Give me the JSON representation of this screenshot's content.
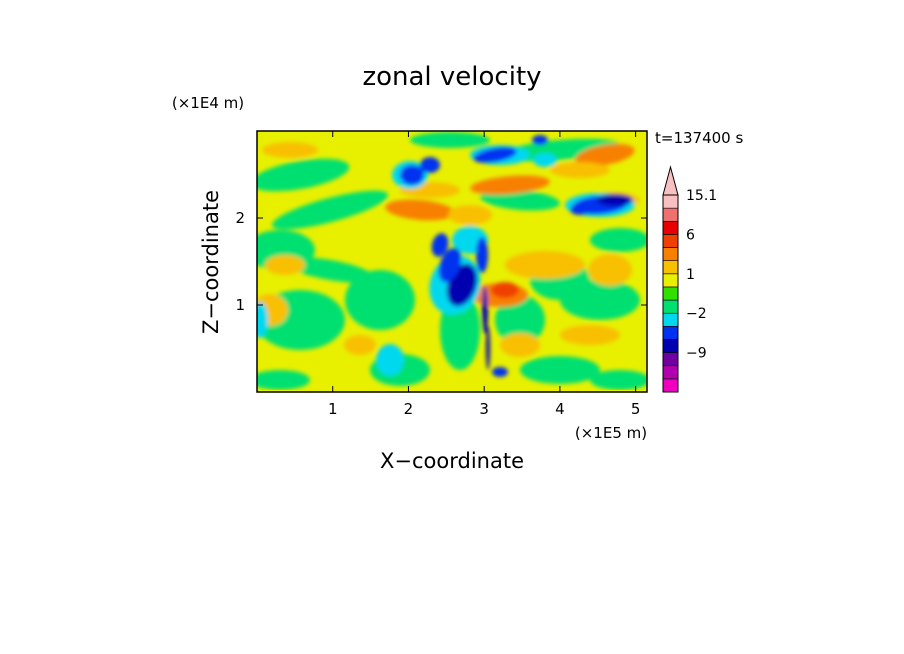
{
  "chart_data": {
    "type": "heatmap",
    "title": "zonal velocity",
    "xlabel": "X−coordinate",
    "ylabel": "Z−coordinate",
    "x_unit": "(×1E5 m)",
    "y_unit": "(×1E4 m)",
    "time_label": "t=137400 s",
    "xlim": [
      0,
      5.15
    ],
    "ylim": [
      0,
      3.0
    ],
    "x_ticks": [
      1,
      2,
      3,
      4,
      5
    ],
    "y_ticks": [
      1,
      2
    ],
    "colorbar": {
      "labels": [
        {
          "text": "15.1",
          "level": 15.1
        },
        {
          "text": "6",
          "level": 6
        },
        {
          "text": "1",
          "level": 1
        },
        {
          "text": "−2",
          "level": -2
        },
        {
          "text": "−9",
          "level": -9
        }
      ],
      "levels": [
        -15,
        -12,
        -9,
        -6,
        -3,
        -2,
        -1,
        0,
        1,
        2,
        3,
        6,
        9,
        12,
        15.1
      ],
      "colors": [
        "#f000c0",
        "#b000b0",
        "#7000a0",
        "#0000b0",
        "#0030f0",
        "#00d8f0",
        "#00e070",
        "#30e000",
        "#e8f000",
        "#f8c000",
        "#f88000",
        "#f04000",
        "#e80000",
        "#f07070",
        "#f8c0c0"
      ]
    }
  }
}
